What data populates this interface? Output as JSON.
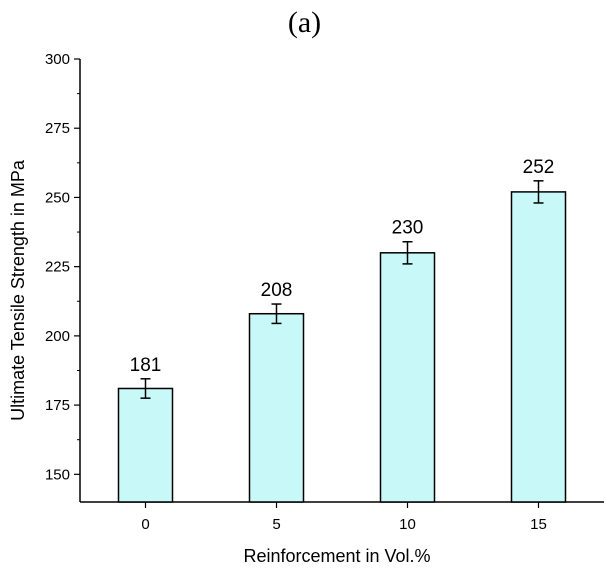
{
  "panel_label": "(a)",
  "chart_data": {
    "type": "bar",
    "title": "",
    "xlabel": "Reinforcement in Vol.%",
    "ylabel": "Ultimate Tensile Strength in MPa",
    "categories": [
      "0",
      "5",
      "10",
      "15"
    ],
    "values": [
      181,
      208,
      230,
      252
    ],
    "errors": [
      3.5,
      3.5,
      4,
      4
    ],
    "data_labels": [
      "181",
      "208",
      "230",
      "252"
    ],
    "ylim": [
      140,
      300
    ],
    "yticks": [
      150,
      175,
      200,
      225,
      250,
      275,
      300
    ],
    "bar_color": "#c8f8f8",
    "bar_edge_color": "#000000",
    "grid": false,
    "legend": "none"
  }
}
